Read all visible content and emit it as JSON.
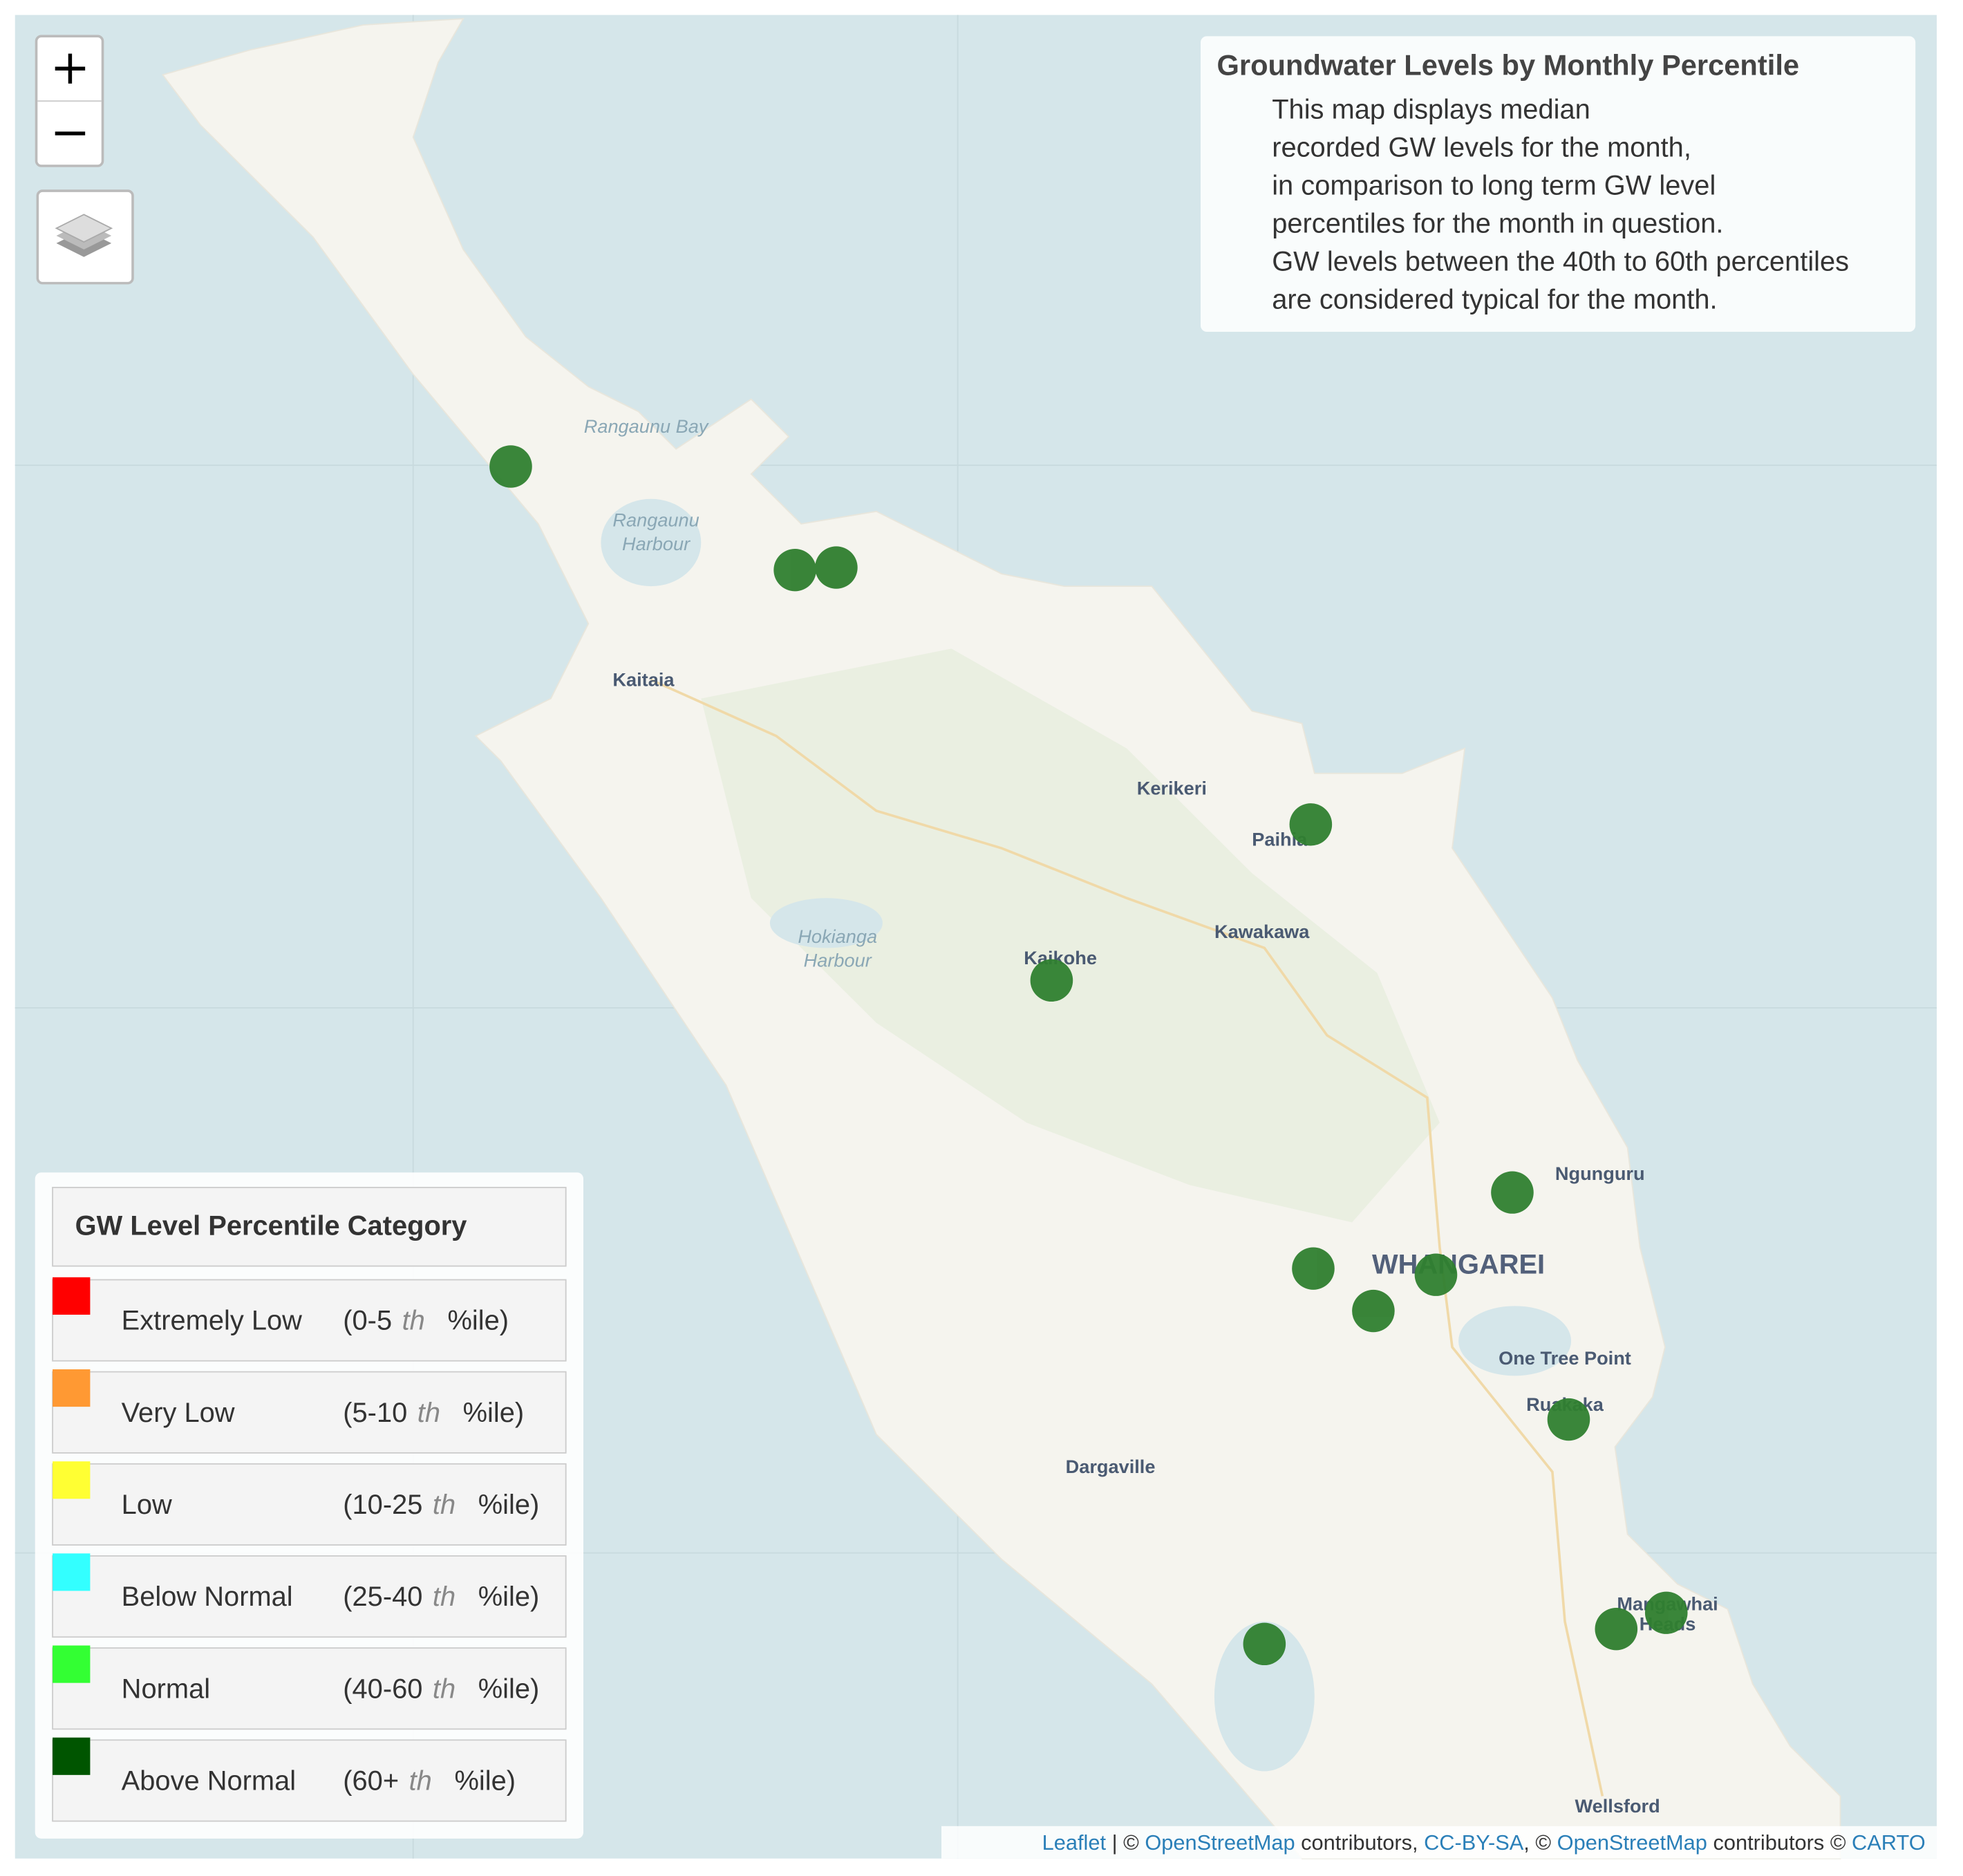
{
  "info": {
    "title": "Groundwater Levels by Monthly Percentile",
    "lines": [
      "This map displays median",
      "recorded GW levels for the month,",
      "in comparison to long term GW level",
      "percentiles for the month in question.",
      "GW levels between the 40th to 60th percentiles",
      "are considered typical for the month."
    ]
  },
  "legend": {
    "title": "GW Level Percentile Category",
    "items": [
      {
        "label": "Extremely Low",
        "range": "(0-5",
        "ordinal": "th",
        "unit": "%ile)",
        "color": "#ff0000"
      },
      {
        "label": "Very Low",
        "range": "(5-10",
        "ordinal": "th",
        "unit": "%ile)",
        "color": "#ff9933"
      },
      {
        "label": "Low",
        "range": "(10-25",
        "ordinal": "th",
        "unit": "%ile)",
        "color": "#ffff33"
      },
      {
        "label": "Below Normal",
        "range": "(25-40",
        "ordinal": "th",
        "unit": "%ile)",
        "color": "#33ffff"
      },
      {
        "label": "Normal",
        "range": "(40-60",
        "ordinal": "th",
        "unit": "%ile)",
        "color": "#33ff33"
      },
      {
        "label": "Above Normal",
        "range": "(60+",
        "ordinal": "th",
        "unit": "%ile)",
        "color": "#005500"
      }
    ]
  },
  "places": [
    "Rangaunu Bay",
    "Rangaunu",
    "Harbour",
    "Kaitaia",
    "Kerikeri",
    "Paihia",
    "Kawakawa",
    "Hokianga",
    "Harbour",
    "Kaikohe",
    "Ngunguru",
    "WHANGAREI",
    "One Tree Point",
    "Ruakaka",
    "Dargaville",
    "Mangawhai",
    "Heads",
    "Wellsford"
  ],
  "attribution": [
    "Leaflet",
    " | © ",
    "OpenStreetMap",
    " contributors, ",
    "CC-BY-SA",
    ", © ",
    "OpenStreetMap",
    " contributors © ",
    "CARTO"
  ]
}
